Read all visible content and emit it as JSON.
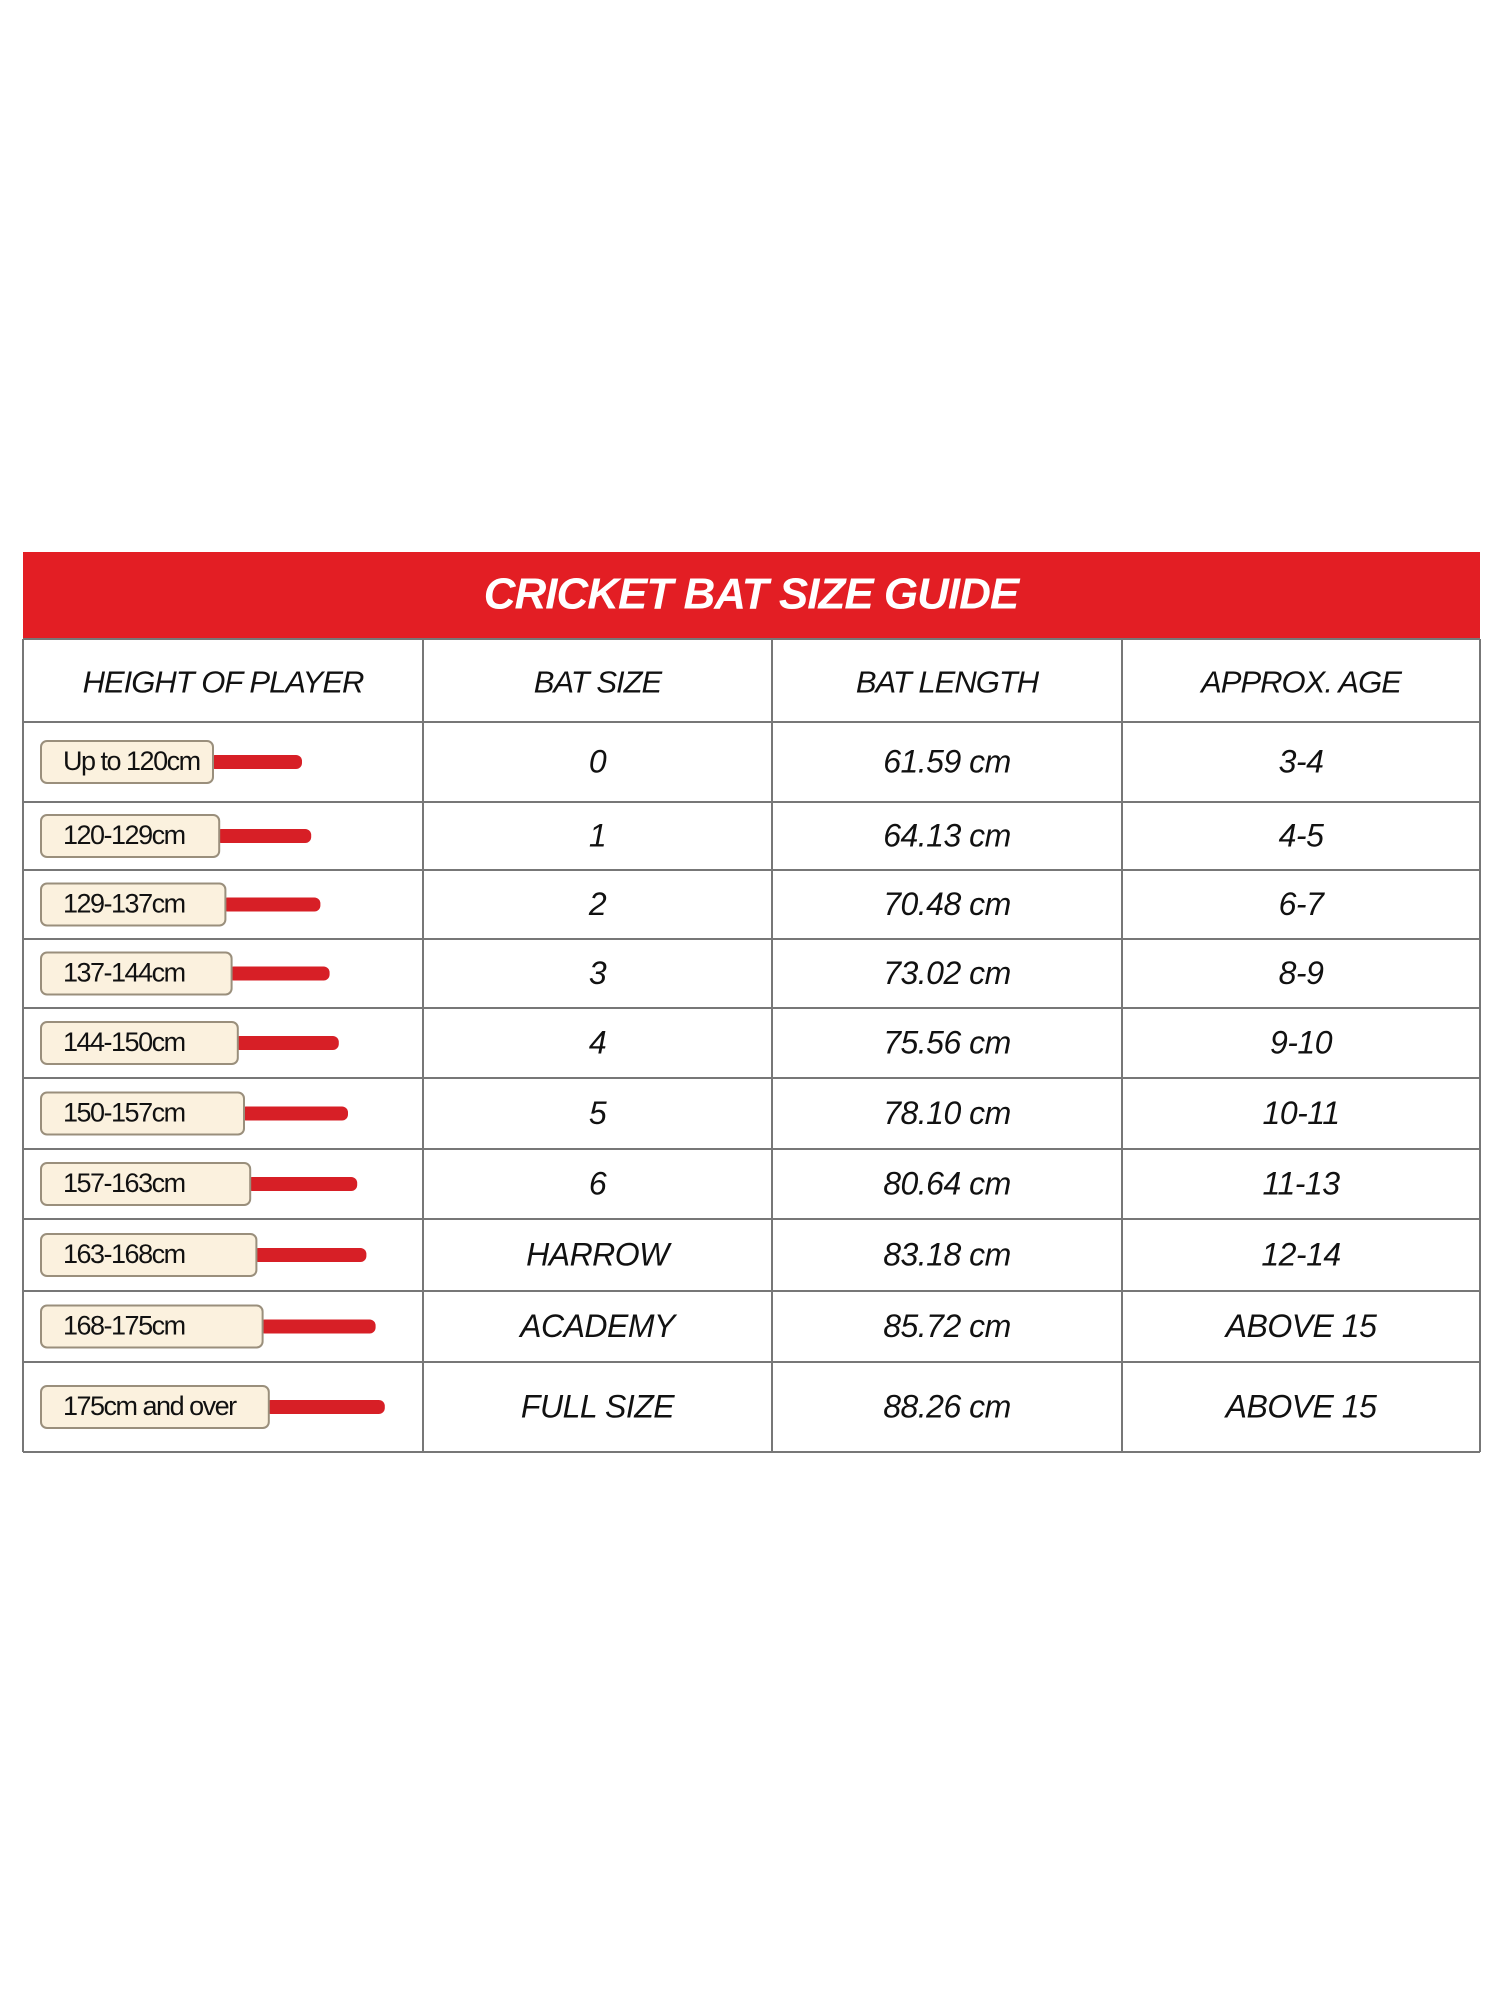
{
  "title": "CRICKET BAT SIZE GUIDE",
  "table": {
    "header": [
      "HEIGHT OF PLAYER",
      "BAT SIZE",
      "BAT LENGTH",
      "APPROX. AGE"
    ],
    "rows": [
      [
        "Up to 120cm",
        "0",
        "61.59 cm",
        "3-4"
      ],
      [
        "120-129cm",
        "1",
        "64.13 cm",
        "4-5"
      ],
      [
        "129-137cm",
        "2",
        "70.48 cm",
        "6-7"
      ],
      [
        "137-144cm",
        "3",
        "73.02 cm",
        "8-9"
      ],
      [
        "144-150cm",
        "4",
        "75.56 cm",
        "9-10"
      ],
      [
        "150-157cm",
        "5",
        "78.10 cm",
        "10-11"
      ],
      [
        "157-163cm",
        "6",
        "80.64 cm",
        "11-13"
      ],
      [
        "163-168cm",
        "HARROW",
        "83.18 cm",
        "12-14"
      ],
      [
        "168-175cm",
        "ACADEMY",
        "85.72 cm",
        "ABOVE 15"
      ],
      [
        "175cm and over",
        "FULL SIZE",
        "88.26 cm",
        "ABOVE 15"
      ]
    ]
  }
}
